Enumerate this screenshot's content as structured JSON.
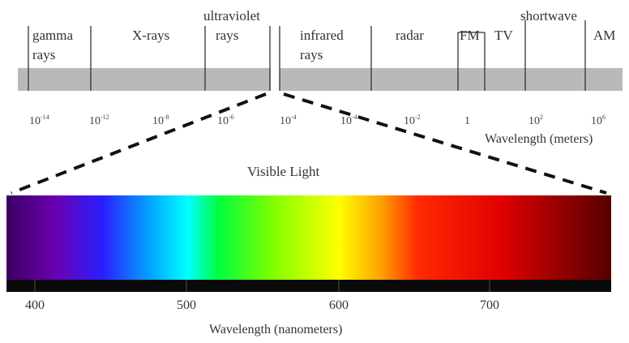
{
  "colors": {
    "band_fill": "#b9b9b9",
    "divider": "#333333",
    "dash": "#111111",
    "spectrum": [
      "#2a0040",
      "#6a00b0",
      "#2a1fff",
      "#00a0ff",
      "#00ffff",
      "#00ff40",
      "#7fff00",
      "#ffff00",
      "#ff8a00",
      "#ff1a00",
      "#e00000",
      "#600000"
    ]
  },
  "em_spectrum": {
    "regions": [
      "gamma",
      "rays",
      "X-rays",
      "ultraviolet",
      "rays",
      "infrared",
      "rays",
      "radar",
      "FM",
      "TV",
      "shortwave",
      "AM"
    ],
    "wavelength_ticks": [
      {
        "base": "10",
        "exp": "-14"
      },
      {
        "base": "10",
        "exp": "-12"
      },
      {
        "base": "10",
        "exp": "-8"
      },
      {
        "base": "10",
        "exp": "-6"
      },
      {
        "base": "10",
        "exp": "-4"
      },
      {
        "base": "10",
        "exp": "-4"
      },
      {
        "base": "10",
        "exp": "-2"
      },
      {
        "base": "1",
        "exp": ""
      },
      {
        "base": "10",
        "exp": "2"
      },
      {
        "base": "10",
        "exp": "6"
      }
    ],
    "axis_label": "Wavelength (meters)"
  },
  "visible": {
    "title": "Visible Light",
    "ticks": [
      "400",
      "500",
      "600",
      "700"
    ],
    "axis_label": "Wavelength (nanometers)"
  }
}
